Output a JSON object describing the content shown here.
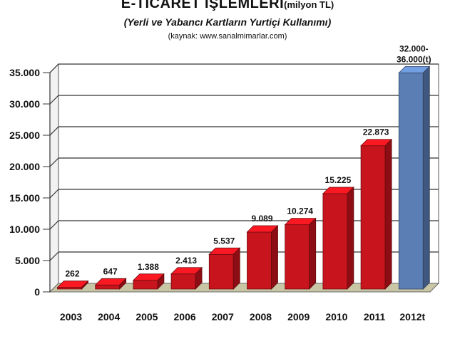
{
  "header": {
    "title": "E-TİCARET İŞLEMLERİ",
    "title_unit": "(milyon TL)",
    "subtitle": "(Yerli ve Yabancı Kartların Yurtiçi Kullanımı)",
    "source": "(kaynak: www.sanalmimarlar.com)"
  },
  "chart_data": {
    "type": "bar",
    "title": "E-TİCARET İŞLEMLERİ (milyon TL)",
    "subtitle": "(Yerli ve Yabancı Kartların Yurtiçi Kullanımı)",
    "categories": [
      "2003",
      "2004",
      "2005",
      "2006",
      "2007",
      "2008",
      "2009",
      "2010",
      "2011",
      "2012t"
    ],
    "values": [
      262,
      647,
      1388,
      2413,
      5537,
      9089,
      10274,
      15225,
      22873,
      34500
    ],
    "labels": [
      "262",
      "647",
      "1.388",
      "2.413",
      "5.537",
      "9.089",
      "10.274",
      "15.225",
      "22.873",
      "32.000-\n36.000(t)"
    ],
    "colors": [
      "#c8141c",
      "#c8141c",
      "#c8141c",
      "#c8141c",
      "#c8141c",
      "#c8141c",
      "#c8141c",
      "#c8141c",
      "#c8141c",
      "#5b7eb5"
    ],
    "ylim": [
      0,
      35000
    ],
    "yticks": [
      0,
      5000,
      10000,
      15000,
      20000,
      25000,
      30000,
      35000
    ],
    "ytick_labels": [
      "0",
      "5.000",
      "10.000",
      "15.000",
      "20.000",
      "25.000",
      "30.000",
      "35.000"
    ],
    "grid": true,
    "xlabel": "",
    "ylabel": ""
  }
}
